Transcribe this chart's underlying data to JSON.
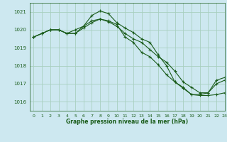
{
  "title": "Graphe pression niveau de la mer (hPa)",
  "background_color": "#cde8f0",
  "grid_color": "#a8cfc0",
  "line_color": "#1a5c1a",
  "xlim": [
    -0.5,
    23
  ],
  "ylim": [
    1015.5,
    1021.5
  ],
  "yticks": [
    1016,
    1017,
    1018,
    1019,
    1020,
    1021
  ],
  "xticks": [
    0,
    1,
    2,
    3,
    4,
    5,
    6,
    7,
    8,
    9,
    10,
    11,
    12,
    13,
    14,
    15,
    16,
    17,
    18,
    19,
    20,
    21,
    22,
    23
  ],
  "series": [
    [
      1019.6,
      1019.8,
      1020.0,
      1020.0,
      1019.8,
      1019.8,
      1020.2,
      1020.5,
      1020.6,
      1020.5,
      1020.3,
      1019.6,
      1019.3,
      1018.75,
      1018.5,
      1018.05,
      1017.5,
      1017.1,
      1016.8,
      1016.4,
      1016.4,
      1016.5,
      1017.0,
      1017.2
    ],
    [
      1019.6,
      1019.8,
      1020.0,
      1020.0,
      1019.8,
      1020.0,
      1020.2,
      1020.8,
      1021.05,
      1020.9,
      1020.4,
      1020.1,
      1019.85,
      1019.5,
      1019.3,
      1018.6,
      1018.0,
      1017.1,
      1016.75,
      1016.4,
      1016.35,
      1016.35,
      1016.4,
      1016.5
    ],
    [
      1019.6,
      1019.8,
      1020.0,
      1020.0,
      1019.8,
      1019.8,
      1020.1,
      1020.4,
      1020.6,
      1020.45,
      1020.2,
      1019.8,
      1019.5,
      1019.3,
      1018.9,
      1018.5,
      1018.2,
      1017.7,
      1017.1,
      1016.8,
      1016.5,
      1016.5,
      1017.2,
      1017.35
    ]
  ]
}
